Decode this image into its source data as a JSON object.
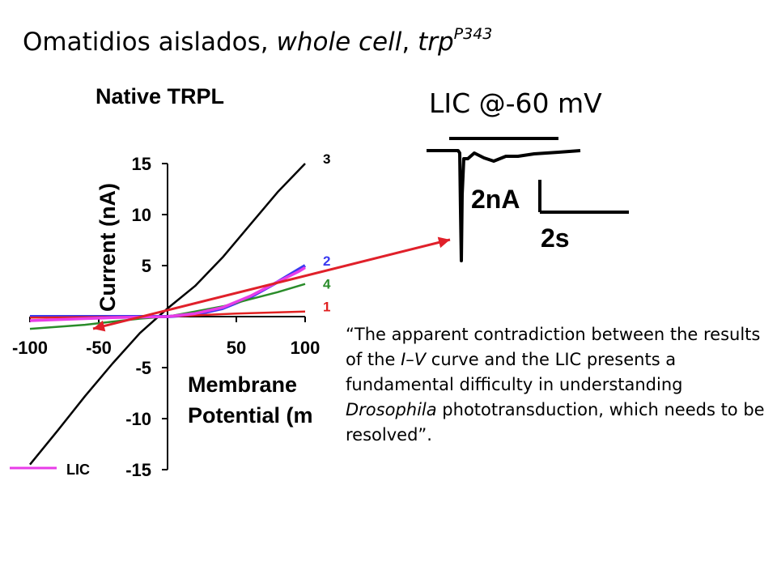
{
  "slide": {
    "title_plain": "Omatidios aislados, ",
    "title_italic_1": "whole cell",
    "title_sep": ", ",
    "title_italic_2": "trp",
    "title_sup": "P343",
    "lic_label": "LIC @-60 mV"
  },
  "quote": {
    "open": "“",
    "part1": "The apparent contradiction between the results of the ",
    "iv_italic": "I–V",
    "part2": " curve and the LIC presents a fundamental difficulty in understanding ",
    "drosophila_italic": "Drosophila",
    "part3": " phototransduction, which needs to be resolved",
    "close": "”."
  },
  "trace": {
    "scale_current": "2nA",
    "scale_time": "2s"
  },
  "colors": {
    "arrow": "#e0202a",
    "trace": "#000000"
  },
  "chart_data": {
    "type": "line",
    "title": "Native TRPL",
    "xlabel_line1": "Membrane",
    "xlabel_line2": "Potential (m",
    "ylabel": "Current (nA)",
    "xlim": [
      -100,
      100
    ],
    "ylim": [
      -15,
      15
    ],
    "x_ticks": [
      -100,
      -50,
      50,
      100
    ],
    "y_ticks": [
      15,
      10,
      5,
      -5,
      -10,
      -15
    ],
    "grid": false,
    "series": [
      {
        "name": "3",
        "color": "#000000",
        "points": [
          [
            -100,
            -14.5
          ],
          [
            -80,
            -11.2
          ],
          [
            -60,
            -7.8
          ],
          [
            -40,
            -4.6
          ],
          [
            -20,
            -1.6
          ],
          [
            0,
            0.8
          ],
          [
            20,
            3.0
          ],
          [
            40,
            5.8
          ],
          [
            60,
            9.0
          ],
          [
            80,
            12.2
          ],
          [
            100,
            15.0
          ]
        ]
      },
      {
        "name": "2",
        "color": "#3a3af0",
        "points": [
          [
            -100,
            0
          ],
          [
            -80,
            0
          ],
          [
            -60,
            0
          ],
          [
            -40,
            0
          ],
          [
            -20,
            0
          ],
          [
            0,
            0
          ],
          [
            20,
            0.2
          ],
          [
            40,
            0.8
          ],
          [
            60,
            1.9
          ],
          [
            80,
            3.4
          ],
          [
            95,
            4.6
          ],
          [
            100,
            5.0
          ]
        ]
      },
      {
        "name": "4",
        "color": "#2a8c2a",
        "points": [
          [
            -100,
            -1.2
          ],
          [
            -80,
            -1.0
          ],
          [
            -60,
            -0.8
          ],
          [
            -40,
            -0.5
          ],
          [
            -20,
            -0.2
          ],
          [
            0,
            0
          ],
          [
            20,
            0.5
          ],
          [
            40,
            1.0
          ],
          [
            60,
            1.7
          ],
          [
            80,
            2.4
          ],
          [
            100,
            3.2
          ]
        ]
      },
      {
        "name": "1",
        "color": "#e02020",
        "points": [
          [
            -100,
            -0.1
          ],
          [
            -50,
            -0.05
          ],
          [
            0,
            0
          ],
          [
            50,
            0.3
          ],
          [
            100,
            0.5
          ]
        ]
      },
      {
        "name": "LIC",
        "color": "#e83ce8",
        "points": [
          [
            -100,
            -0.4
          ],
          [
            -80,
            -0.3
          ],
          [
            -60,
            -0.2
          ],
          [
            -40,
            -0.1
          ],
          [
            -20,
            -0.05
          ],
          [
            0,
            0
          ],
          [
            20,
            0.3
          ],
          [
            40,
            0.9
          ],
          [
            60,
            2.0
          ],
          [
            80,
            3.4
          ],
          [
            95,
            4.4
          ],
          [
            100,
            4.8
          ]
        ]
      }
    ],
    "legend": [
      "LIC"
    ]
  }
}
